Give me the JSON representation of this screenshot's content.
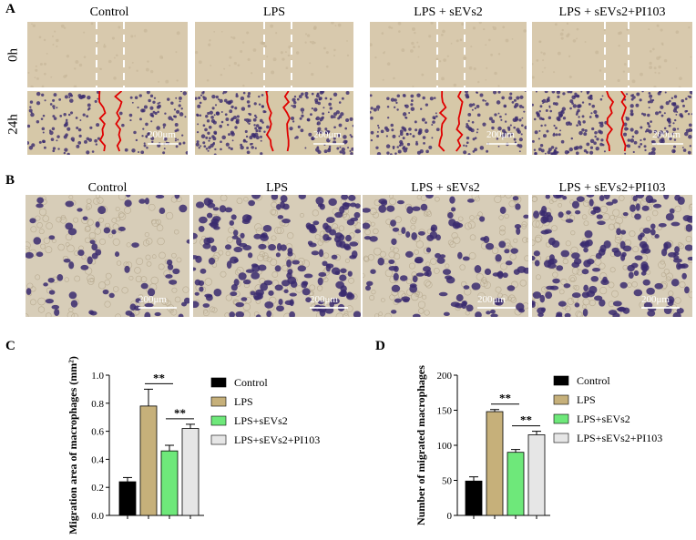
{
  "panels": {
    "A": {
      "letter": "A",
      "columns": [
        "Control",
        "LPS",
        "LPS + sEVs2",
        "LPS + sEVs2+PI103"
      ],
      "rows": [
        "0h",
        "24h"
      ],
      "scale_label": "200μm"
    },
    "B": {
      "letter": "B",
      "columns": [
        "Control",
        "LPS",
        "LPS + sEVs2",
        "LPS + sEVs2+PI103"
      ],
      "scale_label": "200μm"
    },
    "C": {
      "letter": "C"
    },
    "D": {
      "letter": "D"
    }
  },
  "colors": {
    "control": "#000000",
    "lps": "#c6b07a",
    "lps_sevs2": "#6ee87a",
    "lps_sevs2_pi103": "#e6e6e6",
    "wound_edge": "#e00000",
    "cell_stain": "#3a2a6e",
    "background_field": "#d9ccb0"
  },
  "chart_data": [
    {
      "type": "bar",
      "panel": "C",
      "categories": [
        "Control",
        "LPS",
        "LPS+sEVs2",
        "LPS+sEVs2+PI103"
      ],
      "values": [
        0.24,
        0.78,
        0.46,
        0.62
      ],
      "errors": [
        0.03,
        0.12,
        0.04,
        0.03
      ],
      "ylabel": "Migration area of macrophages (mm²)",
      "ylim": [
        0,
        1.0
      ],
      "yticks": [
        "0.0",
        "0.2",
        "0.4",
        "0.6",
        "0.8",
        "1.0"
      ],
      "legend": [
        "Control",
        "LPS",
        "LPS+sEVs2",
        "LPS+sEVs2+PI103"
      ],
      "legend_position": "right",
      "significance": [
        {
          "from": 1,
          "to": 2,
          "label": "**"
        },
        {
          "from": 2,
          "to": 3,
          "label": "**"
        }
      ]
    },
    {
      "type": "bar",
      "panel": "D",
      "categories": [
        "Control",
        "LPS",
        "LPS+sEVs2",
        "LPS+sEVs2+PI103"
      ],
      "values": [
        49,
        148,
        90,
        115
      ],
      "errors": [
        6,
        3,
        4,
        5
      ],
      "ylabel": "Number of migrated macrophages",
      "ylim": [
        0,
        200
      ],
      "yticks": [
        "0",
        "50",
        "100",
        "150",
        "200"
      ],
      "legend": [
        "Control",
        "LPS",
        "LPS+sEVs2",
        "LPS+sEVs2+PI103"
      ],
      "legend_position": "right",
      "significance": [
        {
          "from": 1,
          "to": 2,
          "label": "**"
        },
        {
          "from": 2,
          "to": 3,
          "label": "**"
        }
      ]
    }
  ]
}
